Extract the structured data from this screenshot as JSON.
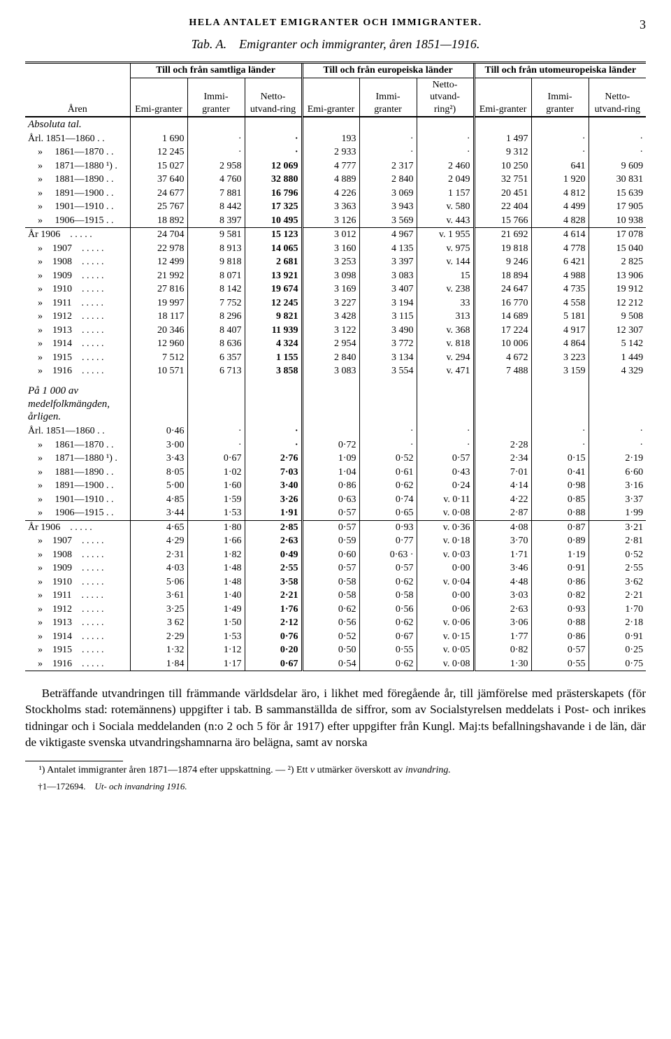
{
  "page_number": "3",
  "running_header": "HELA ANTALET EMIGRANTER OCH IMMIGRANTER.",
  "caption_tab": "Tab. A.",
  "caption_text": "Emigranter och immigranter, åren 1851—1916.",
  "col_year": "Åren",
  "group_all": "Till och från samtliga länder",
  "group_eur": "Till och från europeiska länder",
  "group_noneur": "Till och från utomeuropeiska länder",
  "sub_emi": "Emi-granter",
  "sub_immi": "Immi-granter",
  "sub_net": "Netto-utvand-ring",
  "sub_net2": "Netto-utvand-ring²)",
  "section_abs": "Absoluta tal.",
  "section_rel": "På 1 000 av medelfolkmängden, årligen.",
  "rows_abs_periods": [
    {
      "label": "Årl. 1851—1860 . .",
      "c": [
        "1 690",
        "·",
        "·",
        "193",
        "·",
        "·",
        "1 497",
        "·",
        "·"
      ]
    },
    {
      "label": "  »   1861—1870 . .",
      "c": [
        "12 245",
        "·",
        "·",
        "2 933",
        "·",
        "·",
        "9 312",
        "·",
        "·"
      ]
    },
    {
      "label": "  »   1871—1880 ¹) .",
      "c": [
        "15 027",
        "2 958",
        "12 069",
        "4 777",
        "2 317",
        "2 460",
        "10 250",
        "641",
        "9 609"
      ]
    },
    {
      "label": "  »   1881—1890 . .",
      "c": [
        "37 640",
        "4 760",
        "32 880",
        "4 889",
        "2 840",
        "2 049",
        "32 751",
        "1 920",
        "30 831"
      ]
    },
    {
      "label": "  »   1891—1900 . .",
      "c": [
        "24 677",
        "7 881",
        "16 796",
        "4 226",
        "3 069",
        "1 157",
        "20 451",
        "4 812",
        "15 639"
      ]
    },
    {
      "label": "  »   1901—1910 . .",
      "c": [
        "25 767",
        "8 442",
        "17 325",
        "3 363",
        "3 943",
        "v.    580",
        "22 404",
        "4 499",
        "17 905"
      ]
    },
    {
      "label": "  »   1906—1915 . .",
      "c": [
        "18 892",
        "8 397",
        "10 495",
        "3 126",
        "3 569",
        "v.    443",
        "15 766",
        "4 828",
        "10 938"
      ]
    }
  ],
  "rows_abs_years": [
    {
      "label": "År 1906  . . . . .",
      "c": [
        "24 704",
        "9 581",
        "15 123",
        "3 012",
        "4 967",
        "v. 1 955",
        "21 692",
        "4 614",
        "17 078"
      ]
    },
    {
      "label": "  »  1907  . . . . .",
      "c": [
        "22 978",
        "8 913",
        "14 065",
        "3 160",
        "4 135",
        "v.    975",
        "19 818",
        "4 778",
        "15 040"
      ]
    },
    {
      "label": "  »  1908  . . . . .",
      "c": [
        "12 499",
        "9 818",
        "2 681",
        "3 253",
        "3 397",
        "v.    144",
        "9 246",
        "6 421",
        "2 825"
      ]
    },
    {
      "label": "  »  1909  . . . . .",
      "c": [
        "21 992",
        "8 071",
        "13 921",
        "3 098",
        "3 083",
        "15",
        "18 894",
        "4 988",
        "13 906"
      ]
    },
    {
      "label": "  »  1910  . . . . .",
      "c": [
        "27 816",
        "8 142",
        "19 674",
        "3 169",
        "3 407",
        "v.    238",
        "24 647",
        "4 735",
        "19 912"
      ]
    },
    {
      "label": "  »  1911  . . . . .",
      "c": [
        "19 997",
        "7 752",
        "12 245",
        "3 227",
        "3 194",
        "33",
        "16 770",
        "4 558",
        "12 212"
      ]
    },
    {
      "label": "  »  1912  . . . . .",
      "c": [
        "18 117",
        "8 296",
        "9 821",
        "3 428",
        "3 115",
        "313",
        "14 689",
        "5 181",
        "9 508"
      ]
    },
    {
      "label": "  »  1913  . . . . .",
      "c": [
        "20 346",
        "8 407",
        "11 939",
        "3 122",
        "3 490",
        "v.    368",
        "17 224",
        "4 917",
        "12 307"
      ]
    },
    {
      "label": "  »  1914  . . . . .",
      "c": [
        "12 960",
        "8 636",
        "4 324",
        "2 954",
        "3 772",
        "v.    818",
        "10 006",
        "4 864",
        "5 142"
      ]
    },
    {
      "label": "  »  1915  . . . . .",
      "c": [
        "7 512",
        "6 357",
        "1 155",
        "2 840",
        "3 134",
        "v.    294",
        "4 672",
        "3 223",
        "1 449"
      ]
    },
    {
      "label": "  »  1916  . . . . .",
      "c": [
        "10 571",
        "6 713",
        "3 858",
        "3 083",
        "3 554",
        "v.    471",
        "7 488",
        "3 159",
        "4 329"
      ]
    }
  ],
  "rows_rel_periods": [
    {
      "label": "Årl. 1851—1860 . .",
      "c": [
        "0·46",
        "·",
        "·",
        "",
        "·",
        "·",
        "",
        "·",
        "·"
      ]
    },
    {
      "label": "  »   1861—1870 . .",
      "c": [
        "3·00",
        "·",
        "·",
        "0·72",
        "·",
        "·",
        "2·28",
        "·",
        "·"
      ]
    },
    {
      "label": "  »   1871—1880 ¹) .",
      "c": [
        "3·43",
        "0·67",
        "2·76",
        "1·09",
        "0·52",
        "0·57",
        "2·34",
        "0·15",
        "2·19"
      ]
    },
    {
      "label": "  »   1881—1890 . .",
      "c": [
        "8·05",
        "1·02",
        "7·03",
        "1·04",
        "0·61",
        "0·43",
        "7·01",
        "0·41",
        "6·60"
      ]
    },
    {
      "label": "  »   1891—1900 . .",
      "c": [
        "5·00",
        "1·60",
        "3·40",
        "0·86",
        "0·62",
        "0·24",
        "4·14",
        "0·98",
        "3·16"
      ]
    },
    {
      "label": "  »   1901—1910 . .",
      "c": [
        "4·85",
        "1·59",
        "3·26",
        "0·63",
        "0·74",
        "v. 0·11",
        "4·22",
        "0·85",
        "3·37"
      ]
    },
    {
      "label": "  »   1906—1915 . .",
      "c": [
        "3·44",
        "1·53",
        "1·91",
        "0·57",
        "0·65",
        "v. 0·08",
        "2·87",
        "0·88",
        "1·99"
      ]
    }
  ],
  "rows_rel_years": [
    {
      "label": "År 1906  . . . . .",
      "c": [
        "4·65",
        "1·80",
        "2·85",
        "0·57",
        "0·93",
        "v. 0·36",
        "4·08",
        "0·87",
        "3·21"
      ]
    },
    {
      "label": "  »  1907  . . . . .",
      "c": [
        "4·29",
        "1·66",
        "2·63",
        "0·59",
        "0·77",
        "v. 0·18",
        "3·70",
        "0·89",
        "2·81"
      ]
    },
    {
      "label": "  »  1908  . . . . .",
      "c": [
        "2·31",
        "1·82",
        "0·49",
        "0·60",
        "0·63 ·",
        "v. 0·03",
        "1·71",
        "1·19",
        "0·52"
      ]
    },
    {
      "label": "  »  1909  . . . . .",
      "c": [
        "4·03",
        "1·48",
        "2·55",
        "0·57",
        "0·57",
        "0·00",
        "3·46",
        "0·91",
        "2·55"
      ]
    },
    {
      "label": "  »  1910  . . . . .",
      "c": [
        "5·06",
        "1·48",
        "3·58",
        "0·58",
        "0·62",
        "v. 0·04",
        "4·48",
        "0·86",
        "3·62"
      ]
    },
    {
      "label": "  »  1911  . . . . .",
      "c": [
        "3·61",
        "1·40",
        "2·21",
        "0·58",
        "0·58",
        "0·00",
        "3·03",
        "0·82",
        "2·21"
      ]
    },
    {
      "label": "  »  1912  . . . . .",
      "c": [
        "3·25",
        "1·49",
        "1·76",
        "0·62",
        "0·56",
        "0·06",
        "2·63",
        "0·93",
        "1·70"
      ]
    },
    {
      "label": "  »  1913  . . . . .",
      "c": [
        "3 62",
        "1·50",
        "2·12",
        "0·56",
        "0·62",
        "v. 0·06",
        "3·06",
        "0·88",
        "2·18"
      ]
    },
    {
      "label": "  »  1914  . . . . .",
      "c": [
        "2·29",
        "1·53",
        "0·76",
        "0·52",
        "0·67",
        "v. 0·15",
        "1·77",
        "0·86",
        "0·91"
      ]
    },
    {
      "label": "  »  1915  . . . . .",
      "c": [
        "1·32",
        "1·12",
        "0·20",
        "0·50",
        "0·55",
        "v. 0·05",
        "0·82",
        "0·57",
        "0·25"
      ]
    },
    {
      "label": "  »  1916  . . . . .",
      "c": [
        "1·84",
        "1·17",
        "0·67",
        "0·54",
        "0·62",
        "v. 0·08",
        "1·30",
        "0·55",
        "0·75"
      ]
    }
  ],
  "bold_cols": [
    2
  ],
  "body_text": "Beträffande utvandringen till främmande världsdelar äro, i likhet med föregående år, till jämförelse med prästerskapets (för Stockholms stad: rotemännens) uppgifter i tab. B sammanställda de siffror, som av Socialstyrelsen meddelats i Post- och inrikes tidningar och i Sociala meddelanden (n:o 2 och 5 för år 1917) efter uppgifter från Kungl. Maj:ts befallningshavande i de län, där de viktigaste svenska utvandringshamnarna äro belägna, samt av norska",
  "footnote1_a": "¹) Antalet immigranter åren 1871—1874 efter uppskattning. — ²) Ett ",
  "footnote1_v": "v",
  "footnote1_b": " utmärker överskott av ",
  "footnote1_c": "invandring.",
  "imprint_a": "†1—172694.",
  "imprint_b": "Ut- och invandring 1916."
}
